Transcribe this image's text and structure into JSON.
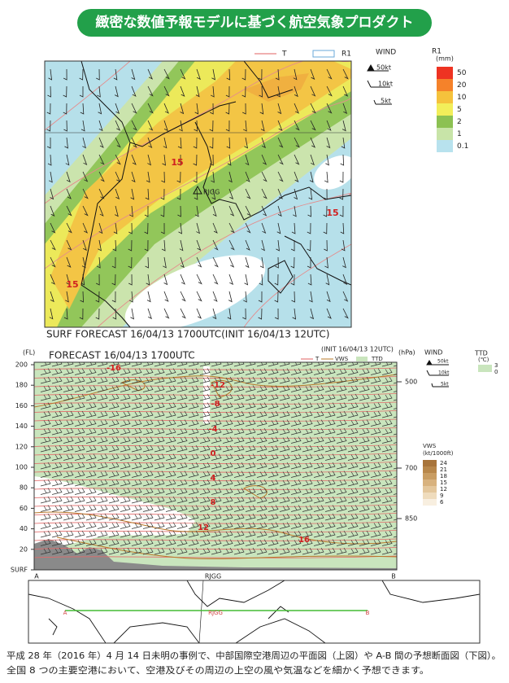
{
  "banner": {
    "title": "緻密な数値予報モデルに基づく航空気象プロダクト"
  },
  "plan_view": {
    "legend_t": "T",
    "legend_r1": "R1",
    "wind_title": "WIND",
    "wind_labels": [
      "50kt",
      "10kt",
      "5kt"
    ],
    "r1_title": "R1",
    "r1_unit": "(mm)",
    "r1_levels": [
      "50",
      "20",
      "10",
      "5",
      "2",
      "1",
      "0.1"
    ],
    "contour_labels": [
      "15",
      "15",
      "15"
    ],
    "station": "RJGG",
    "caption": "SURF FORECAST 16/04/13 1700UTC(INIT 16/04/13 12UTC)"
  },
  "cross_section": {
    "title": "FORECAST 16/04/13 1700UTC",
    "init": "(INIT 16/04/13 12UTC)",
    "y_unit": "(FL)",
    "y_ticks": [
      "200",
      "180",
      "160",
      "140",
      "120",
      "100",
      "80",
      "60",
      "40",
      "20",
      "SURF"
    ],
    "p_unit": "(hPa)",
    "p_ticks": [
      "500",
      "700",
      "850"
    ],
    "legend_t": "T",
    "legend_vws": "VWS",
    "legend_ttd": "TTD",
    "wind_title": "WIND",
    "wind_labels": [
      "50kt",
      "10kt",
      "5kt"
    ],
    "ttd_title": "TTD",
    "ttd_unit": "(℃)",
    "ttd_levels": [
      "3",
      "0"
    ],
    "vws_title": "VWS",
    "vws_unit": "(kt/1000ft)",
    "vws_levels": [
      "24",
      "21",
      "18",
      "15",
      "12",
      "9",
      "6"
    ],
    "contour_labels": [
      "-16",
      "-12",
      "-8",
      "-4",
      "0",
      "4",
      "8",
      "12",
      "16"
    ],
    "x_labels": [
      "A",
      "RJGG",
      "B"
    ]
  },
  "route_map": {
    "labels": [
      "A",
      "RJGG",
      "B"
    ]
  },
  "caption": [
    "平成 28 年（2016 年）4 月 14 日未明の事例で、中部国際空港周辺の平面図（上図）や A-B 間の予想断面図（下図）。",
    "全国 8 つの主要空港において、空港及びその周辺の上空の風や気温などを細かく予想できます。"
  ]
}
